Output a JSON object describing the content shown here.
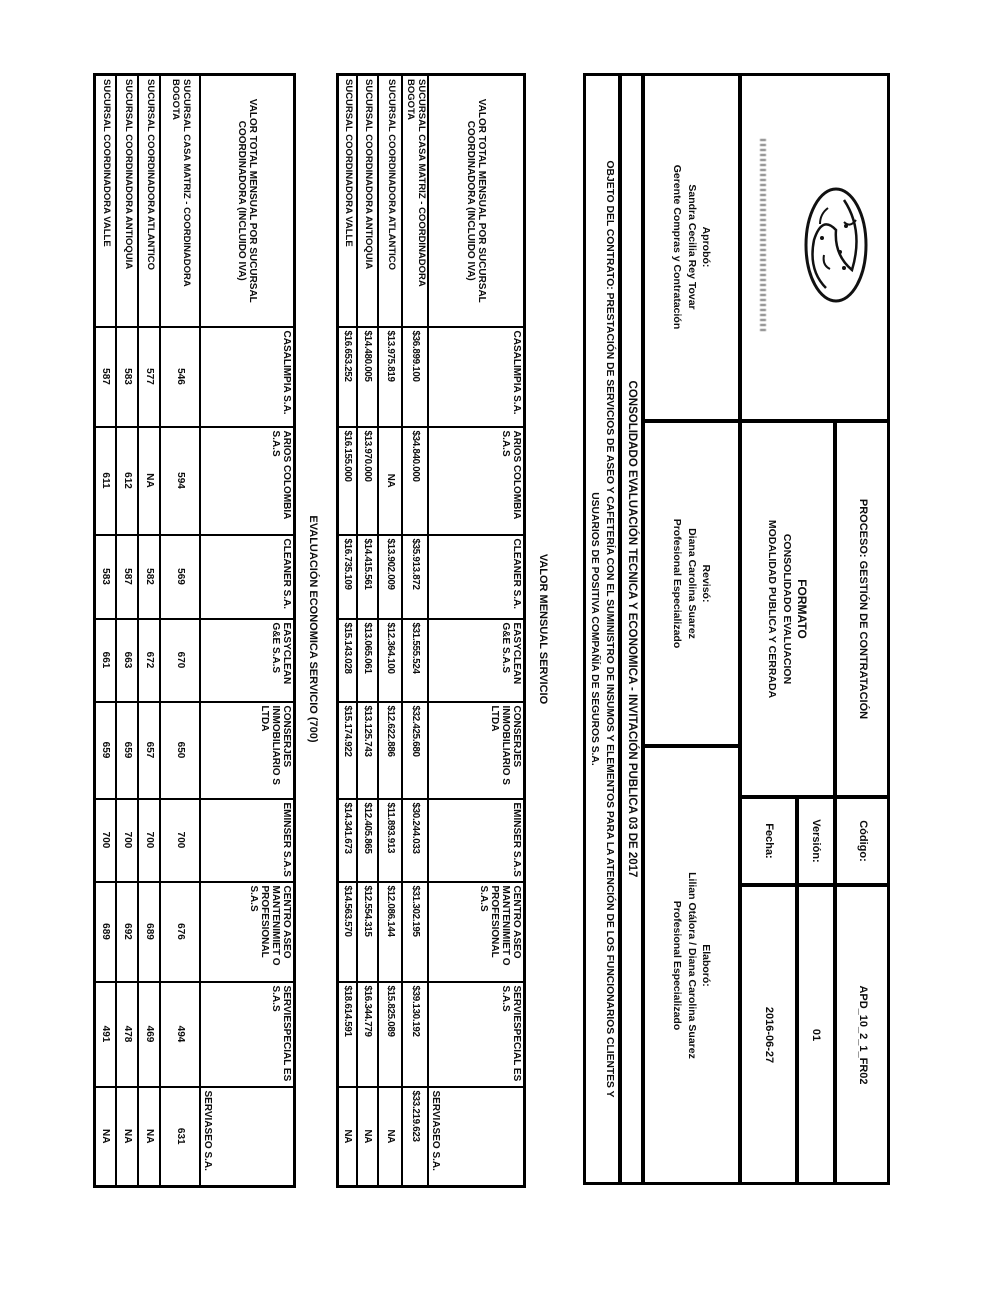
{
  "header": {
    "logo_icon": "globe-logo",
    "proceso": "PROCESO: GESTIÓN DE CONTRATACIÓN",
    "formato_line1": "FORMATO",
    "formato_line2": "CONSOLIDADO EVALUACION",
    "formato_line3": "MODALIDAD PUBLICA Y CERRADA",
    "codigo_label": "Código:",
    "codigo_value": "APD_10_2_1_FR02",
    "version_label": "Versión:",
    "version_value": "01",
    "fecha_label": "Fecha:",
    "fecha_value": "2016-06-27",
    "aprobo_title": "Aprobó:",
    "aprobo_name": "Sandra Cecilia Rey Tovar",
    "aprobo_role": "Gerente Compras y Contratación",
    "reviso_title": "Revisó:",
    "reviso_name": "Diana Carolina Suarez",
    "reviso_role": "Profesional Especializado",
    "elaboro_title": "Elaboró:",
    "elaboro_name": "Lilian Otálora / Diana Carolina Suarez",
    "elaboro_role": "Profesional Especializado"
  },
  "titles": {
    "consolidado": "CONSOLIDADO EVALUACIÓN TECNICA Y ECONOMICA - INVITACIÓN PUBLICA 03 DE 2017",
    "objeto_line1": "OBJETO DEL CONTRATO: PRESTACIÓN DE SERVICIOS DE ASEO Y CAFETERÍA CON EL SUMINISTRO DE INSUMOS Y ELEMENTOS PARA LA ATENCIÓN DE LOS FUNCIONARIOS CLIENTES Y",
    "objeto_line2": "USUARIOS DE POSITIVA COMPAÑÍA DE SEGUROS S.A."
  },
  "tables": [
    {
      "section_title": "VALOR MENSUAL SERVICIO",
      "corner_header": "VALOR TOTAL MENSUAL POR SUCURSAL COORDINADORA (INCLUIDO IVA)",
      "company_headers": [
        "CASALIMPIA S.A.",
        "ARIOS COLOMBIA S.A.S",
        "CLEANER S.A.",
        "EASYCLEAN G&E S.A.S",
        "CONSERJES INMOBILIARIO S LTDA",
        "EMINSER S.A.S",
        "CENTRO ASEO MANTENIMIET O PROFESIONAL S.A.S",
        "SERVIESPECIAL ES S.A.S",
        "SERVIASEO S.A."
      ],
      "rows": [
        {
          "label": "SUCURSAL CASA MATRIZ - COORDINADORA BOGOTA",
          "values": [
            "$36.899.100",
            "$34.840.000",
            "$35.913.872",
            "$31.555.524",
            "$32.425.680",
            "$30.244.033",
            "$31.302.195",
            "$39.130.192",
            "$33.219.623"
          ]
        },
        {
          "label": "SUCURSAL COORDINADORA ATLANTICO",
          "values": [
            "$13.975.819",
            "NA",
            "$13.902.009",
            "$12.364.100",
            "$12.622.886",
            "$11.893.913",
            "$12.086.144",
            "$15.825.089",
            "NA"
          ]
        },
        {
          "label": "SUCURSAL COORDINADORA ANTIOQUIA",
          "values": [
            "$14.480.005",
            "$13.970.000",
            "$14.415.561",
            "$13.065.061",
            "$13.125.743",
            "$12.405.865",
            "$12.554.315",
            "$16.344.779",
            "NA"
          ]
        },
        {
          "label": "SUCURSAL COORDINADORA VALLE",
          "values": [
            "$16.653.252",
            "$16.155.000",
            "$16.735.109",
            "$15.143.028",
            "$15.174.922",
            "$14.341.673",
            "$14.563.570",
            "$18.614.591",
            "NA"
          ]
        }
      ]
    },
    {
      "section_title": "EVALUACIÓN ECONOMICA SERVICIO (700)",
      "corner_header": "VALOR TOTAL MENSUAL POR SUCURSAL COORDINADORA (INCLUIDO IVA)",
      "company_headers": [
        "CASALIMPIA S.A.",
        "ARIOS COLOMBIA S.A.S",
        "CLEANER S.A.",
        "EASYCLEAN G&E S.A.S",
        "CONSERJES INMOBILIARIO S LTDA",
        "EMINSER S.A.S",
        "CENTRO ASEO MANTENIMIET O PROFESIONAL S.A.S",
        "SERVIESPECIAL ES S.A.S",
        "SERVIASEO S.A."
      ],
      "rows": [
        {
          "label": "SUCURSAL CASA MATRIZ - COORDINADORA BOGOTA",
          "values": [
            "546",
            "594",
            "569",
            "670",
            "650",
            "700",
            "676",
            "494",
            "631"
          ]
        },
        {
          "label": "SUCURSAL COORDINADORA ATLANTICO",
          "values": [
            "577",
            "NA",
            "582",
            "672",
            "657",
            "700",
            "689",
            "469",
            "NA"
          ]
        },
        {
          "label": "SUCURSAL COORDINADORA ANTIOQUIA",
          "values": [
            "583",
            "612",
            "587",
            "663",
            "659",
            "700",
            "692",
            "478",
            "NA"
          ]
        },
        {
          "label": "SUCURSAL COORDINADORA VALLE",
          "values": [
            "587",
            "611",
            "583",
            "661",
            "659",
            "700",
            "689",
            "491",
            "NA"
          ]
        }
      ]
    }
  ]
}
